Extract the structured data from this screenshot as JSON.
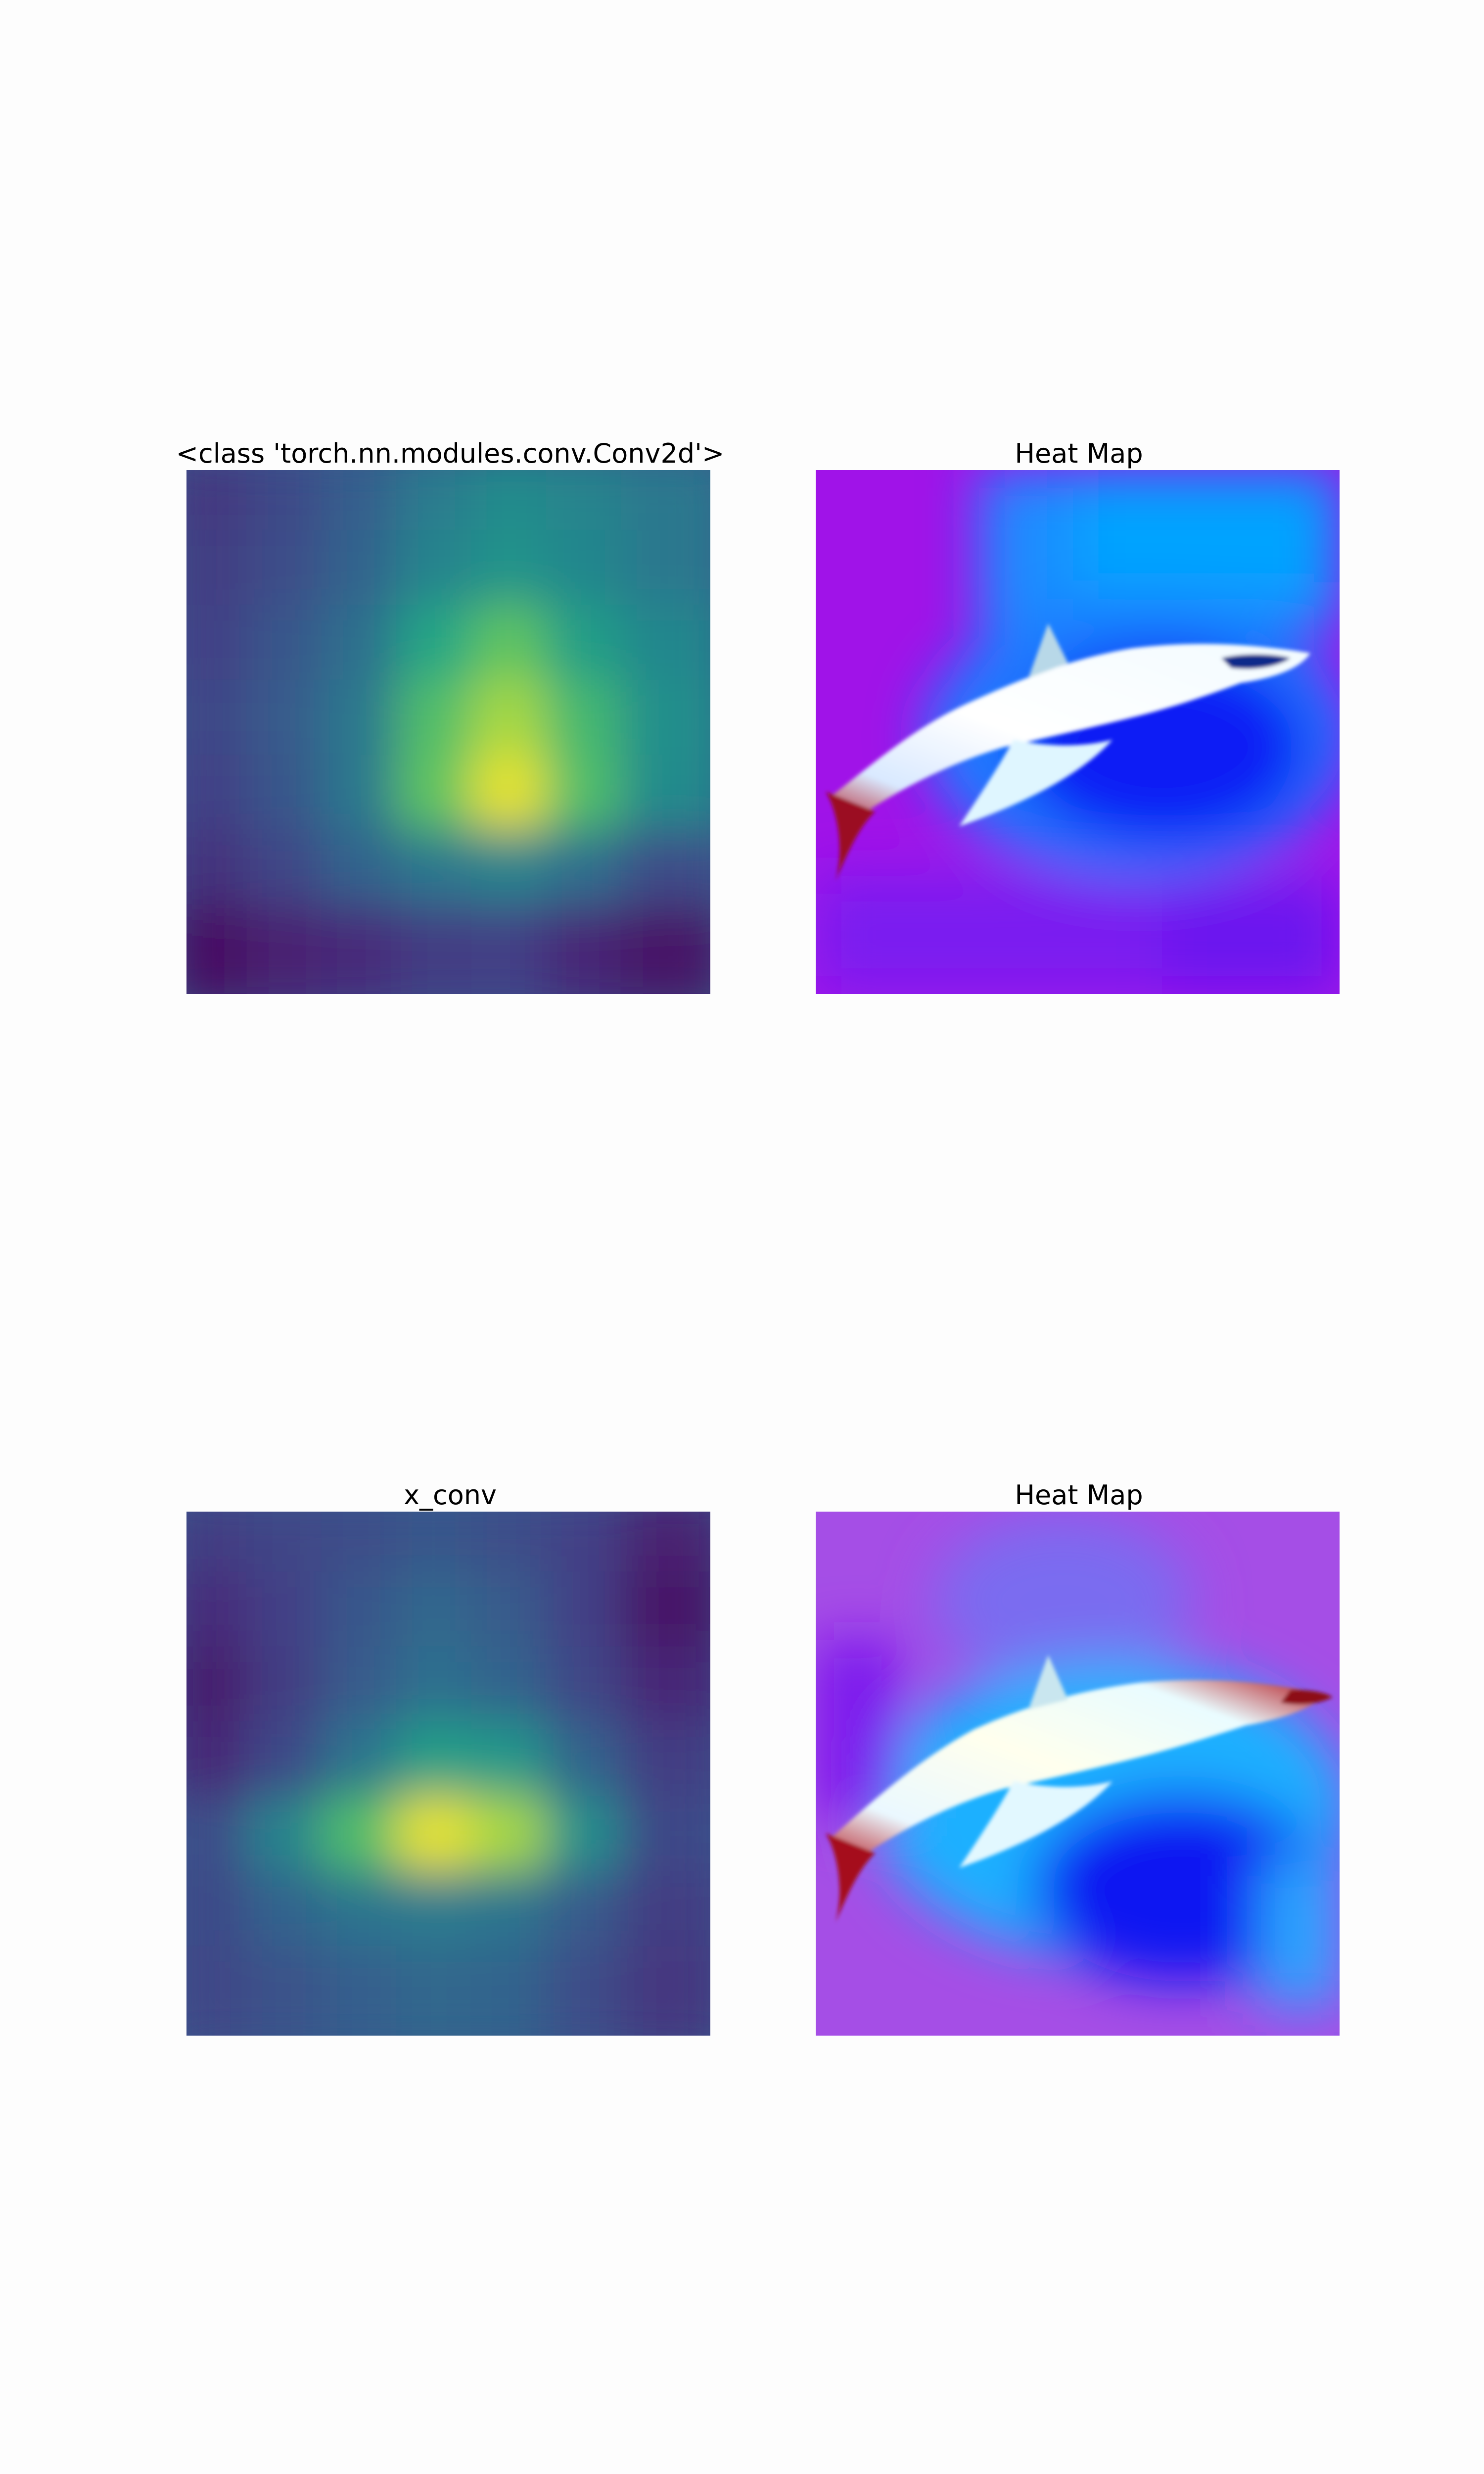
{
  "chart_data": [
    {
      "type": "heatmap",
      "title": "<class 'torch.nn.modules.conv.Conv2d'>",
      "colormap": "viridis",
      "axes_visible": false,
      "grid": false,
      "legend": "none",
      "hotspot": "center-right, slightly below middle",
      "values": [
        [
          0.2,
          0.28,
          0.38,
          0.52,
          0.6,
          0.56,
          0.5
        ],
        [
          0.22,
          0.3,
          0.4,
          0.56,
          0.64,
          0.58,
          0.5
        ],
        [
          0.24,
          0.34,
          0.46,
          0.74,
          0.84,
          0.7,
          0.58
        ],
        [
          0.26,
          0.36,
          0.5,
          0.82,
          0.92,
          0.8,
          0.62
        ],
        [
          0.24,
          0.34,
          0.5,
          0.84,
          0.98,
          0.82,
          0.6
        ],
        [
          0.18,
          0.26,
          0.4,
          0.5,
          0.56,
          0.46,
          0.3
        ],
        [
          0.06,
          0.12,
          0.16,
          0.22,
          0.24,
          0.14,
          0.08
        ]
      ]
    },
    {
      "type": "heatmap",
      "title": "Heat Map",
      "colormap": "hsv overlay",
      "axes_visible": false,
      "overlay_subject": "shark",
      "colors": {
        "cold": "#a013e8",
        "mid": "#0a86ff",
        "core": "#0a1ef5",
        "fins": "#b0121e"
      }
    },
    {
      "type": "heatmap",
      "title": "x_conv",
      "colormap": "viridis",
      "axes_visible": false,
      "grid": false,
      "legend": "none",
      "hotspot": "center, lower part",
      "values": [
        [
          0.22,
          0.26,
          0.3,
          0.34,
          0.3,
          0.24,
          0.12
        ],
        [
          0.16,
          0.24,
          0.34,
          0.42,
          0.36,
          0.24,
          0.08
        ],
        [
          0.1,
          0.22,
          0.36,
          0.46,
          0.4,
          0.26,
          0.14
        ],
        [
          0.14,
          0.28,
          0.48,
          0.7,
          0.66,
          0.4,
          0.22
        ],
        [
          0.3,
          0.56,
          0.82,
          0.98,
          0.92,
          0.62,
          0.28
        ],
        [
          0.28,
          0.4,
          0.48,
          0.52,
          0.48,
          0.36,
          0.22
        ],
        [
          0.26,
          0.32,
          0.38,
          0.42,
          0.4,
          0.3,
          0.2
        ]
      ]
    },
    {
      "type": "heatmap",
      "title": "Heat Map",
      "colormap": "hsv overlay",
      "axes_visible": false,
      "overlay_subject": "shark",
      "colors": {
        "cold": "#a54ee6",
        "mid": "#1ab0ff",
        "core": "#0714f2",
        "fins": "#b3121a"
      }
    }
  ]
}
